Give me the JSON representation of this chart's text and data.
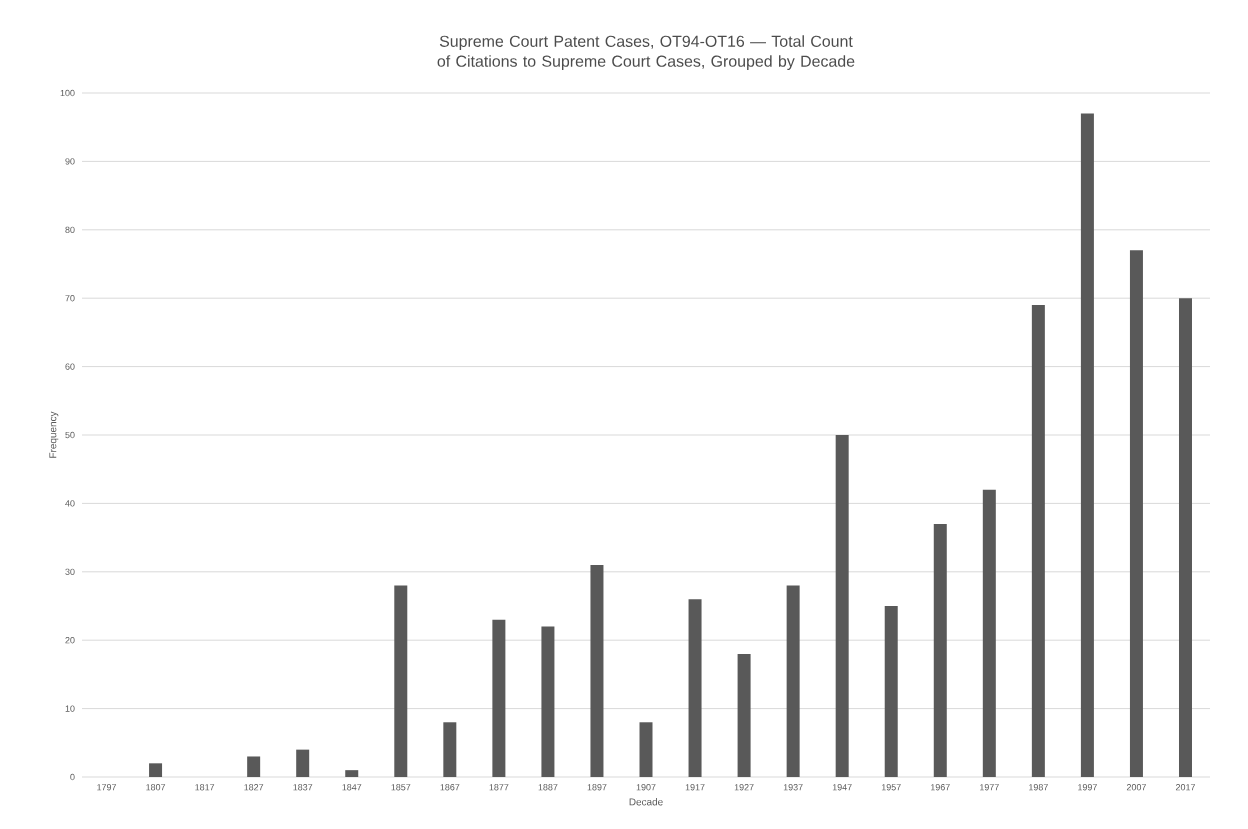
{
  "chart_data": {
    "type": "bar",
    "title": "Supreme Court Patent Cases, OT94-OT16 — Total Count of Citations to Supreme Court Cases, Grouped by Decade",
    "xlabel": "Decade",
    "ylabel": "Frequency",
    "categories": [
      "1797",
      "1807",
      "1817",
      "1827",
      "1837",
      "1847",
      "1857",
      "1867",
      "1877",
      "1887",
      "1897",
      "1907",
      "1917",
      "1927",
      "1937",
      "1947",
      "1957",
      "1967",
      "1977",
      "1987",
      "1997",
      "2007",
      "2017"
    ],
    "values": [
      0,
      2,
      0,
      3,
      4,
      1,
      28,
      8,
      23,
      22,
      31,
      8,
      26,
      18,
      28,
      50,
      25,
      37,
      42,
      69,
      97,
      77,
      70
    ],
    "color": "#595959",
    "ylim": [
      0,
      100
    ],
    "yticks": [
      0,
      10,
      20,
      30,
      40,
      50,
      60,
      70,
      80,
      90,
      100
    ],
    "grid": "y"
  }
}
